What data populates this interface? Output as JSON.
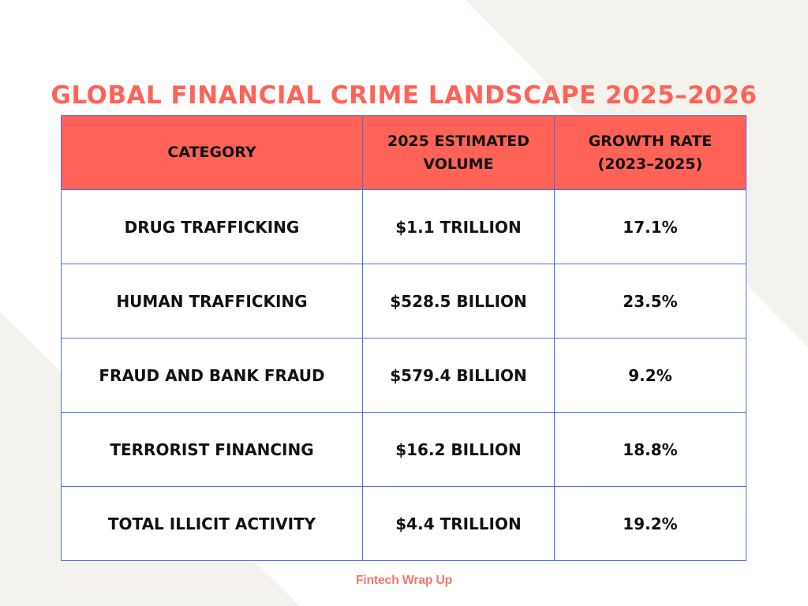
{
  "title": "Global Financial Crime Landscape 2025–2026",
  "table": {
    "headers": [
      "Category",
      "2025 Estimated Volume",
      "Growth Rate (2023–2025)"
    ],
    "rows": [
      [
        "Drug Trafficking",
        "$1.1 trillion",
        "17.1%"
      ],
      [
        "Human Trafficking",
        "$528.5 billion",
        "23.5%"
      ],
      [
        "Fraud and Bank Fraud",
        "$579.4 billion",
        "9.2%"
      ],
      [
        "Terrorist Financing",
        "$16.2 billion",
        "18.8%"
      ],
      [
        "Total Illicit Activity",
        "$4.4 trillion",
        "19.2%"
      ]
    ]
  },
  "footer": {
    "brand": "Fintech Wrap Up"
  },
  "colors": {
    "accent": "#ff6357",
    "border": "#4f6ee0",
    "background_shape": "#f4f2ec",
    "footer_text": "#f07a70"
  }
}
